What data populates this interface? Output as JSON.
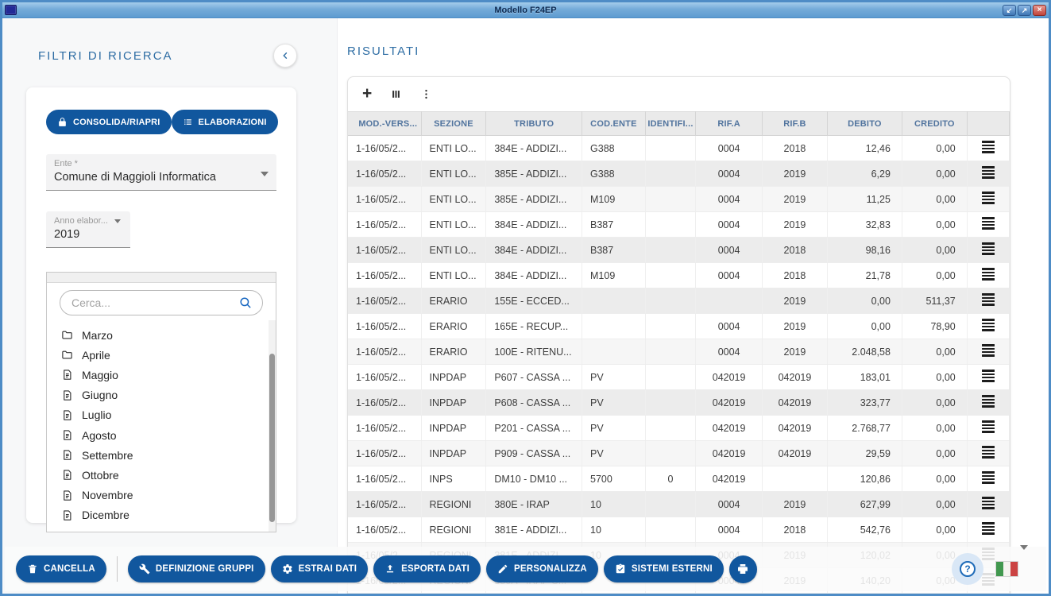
{
  "window": {
    "title": "Modello F24EP",
    "controls": {
      "restore": "↙",
      "maximize": "↗",
      "close": "×"
    }
  },
  "colors": {
    "accent_blue": "#11579e",
    "heading_blue": "#2e6da4",
    "table_header_text": "#51749e",
    "flag_green": "#42984f",
    "flag_red": "#cb4343"
  },
  "sidebar": {
    "title": "FILTRI DI RICERCA",
    "actions": [
      {
        "label": "CONSOLIDA/RIAPRI",
        "icon": "lock-icon"
      },
      {
        "label": "ELABORAZIONI",
        "icon": "list-icon"
      }
    ],
    "ente": {
      "label": "Ente *",
      "value": "Comune di Maggioli Informatica"
    },
    "anno": {
      "label": "Anno elabor...",
      "value": "2019"
    },
    "search": {
      "placeholder": "Cerca..."
    },
    "tree": [
      {
        "label": "Marzo",
        "icon": "folder"
      },
      {
        "label": "Aprile",
        "icon": "folder"
      },
      {
        "label": "Maggio",
        "icon": "file"
      },
      {
        "label": "Giugno",
        "icon": "file"
      },
      {
        "label": "Luglio",
        "icon": "file"
      },
      {
        "label": "Agosto",
        "icon": "file"
      },
      {
        "label": "Settembre",
        "icon": "file"
      },
      {
        "label": "Ottobre",
        "icon": "file"
      },
      {
        "label": "Novembre",
        "icon": "file"
      },
      {
        "label": "Dicembre",
        "icon": "file"
      }
    ]
  },
  "main": {
    "title": "RISULTATI",
    "toolbar": {
      "add_icon": "+"
    },
    "table": {
      "columns": [
        "MOD.-VERS...",
        "SEZIONE",
        "TRIBUTO",
        "COD.ENTE",
        "IDENTIFI...",
        "RIF.A",
        "RIF.B",
        "DEBITO",
        "CREDITO"
      ],
      "rows": [
        {
          "mod": "1-16/05/2...",
          "sezione": "ENTI LO...",
          "tributo": "384E - ADDIZI...",
          "cod_ente": "G388",
          "identifi": "",
          "rif_a": "0004",
          "rif_b": "2018",
          "debito": "12,46",
          "credito": "0,00",
          "shade": 0
        },
        {
          "mod": "1-16/05/2...",
          "sezione": "ENTI LO...",
          "tributo": "385E - ADDIZI...",
          "cod_ente": "G388",
          "identifi": "",
          "rif_a": "0004",
          "rif_b": "2019",
          "debito": "6,29",
          "credito": "0,00",
          "shade": 2
        },
        {
          "mod": "1-16/05/2...",
          "sezione": "ENTI LO...",
          "tributo": "385E - ADDIZI...",
          "cod_ente": "M109",
          "identifi": "",
          "rif_a": "0004",
          "rif_b": "2019",
          "debito": "11,25",
          "credito": "0,00",
          "shade": 1
        },
        {
          "mod": "1-16/05/2...",
          "sezione": "ENTI LO...",
          "tributo": "384E - ADDIZI...",
          "cod_ente": "B387",
          "identifi": "",
          "rif_a": "0004",
          "rif_b": "2019",
          "debito": "32,83",
          "credito": "0,00",
          "shade": 0
        },
        {
          "mod": "1-16/05/2...",
          "sezione": "ENTI LO...",
          "tributo": "384E - ADDIZI...",
          "cod_ente": "B387",
          "identifi": "",
          "rif_a": "0004",
          "rif_b": "2018",
          "debito": "98,16",
          "credito": "0,00",
          "shade": 2
        },
        {
          "mod": "1-16/05/2...",
          "sezione": "ENTI LO...",
          "tributo": "384E - ADDIZI...",
          "cod_ente": "M109",
          "identifi": "",
          "rif_a": "0004",
          "rif_b": "2018",
          "debito": "21,78",
          "credito": "0,00",
          "shade": 0
        },
        {
          "mod": "1-16/05/2...",
          "sezione": "ERARIO",
          "tributo": "155E - ECCED...",
          "cod_ente": "",
          "identifi": "",
          "rif_a": "",
          "rif_b": "2019",
          "debito": "0,00",
          "credito": "511,37",
          "shade": 2
        },
        {
          "mod": "1-16/05/2...",
          "sezione": "ERARIO",
          "tributo": "165E - RECUP...",
          "cod_ente": "",
          "identifi": "",
          "rif_a": "0004",
          "rif_b": "2019",
          "debito": "0,00",
          "credito": "78,90",
          "shade": 0
        },
        {
          "mod": "1-16/05/2...",
          "sezione": "ERARIO",
          "tributo": "100E - RITENU...",
          "cod_ente": "",
          "identifi": "",
          "rif_a": "0004",
          "rif_b": "2019",
          "debito": "2.048,58",
          "credito": "0,00",
          "shade": 1
        },
        {
          "mod": "1-16/05/2...",
          "sezione": "INPDAP",
          "tributo": "P607 - CASSA ...",
          "cod_ente": "PV",
          "identifi": "",
          "rif_a": "042019",
          "rif_b": "042019",
          "debito": "183,01",
          "credito": "0,00",
          "shade": 0
        },
        {
          "mod": "1-16/05/2...",
          "sezione": "INPDAP",
          "tributo": "P608 - CASSA ...",
          "cod_ente": "PV",
          "identifi": "",
          "rif_a": "042019",
          "rif_b": "042019",
          "debito": "323,77",
          "credito": "0,00",
          "shade": 2
        },
        {
          "mod": "1-16/05/2...",
          "sezione": "INPDAP",
          "tributo": "P201 - CASSA ...",
          "cod_ente": "PV",
          "identifi": "",
          "rif_a": "042019",
          "rif_b": "042019",
          "debito": "2.768,77",
          "credito": "0,00",
          "shade": 0
        },
        {
          "mod": "1-16/05/2...",
          "sezione": "INPDAP",
          "tributo": "P909 - CASSA ...",
          "cod_ente": "PV",
          "identifi": "",
          "rif_a": "042019",
          "rif_b": "042019",
          "debito": "29,59",
          "credito": "0,00",
          "shade": 1
        },
        {
          "mod": "1-16/05/2...",
          "sezione": "INPS",
          "tributo": "DM10 - DM10 ...",
          "cod_ente": "5700",
          "identifi": "0",
          "rif_a": "042019",
          "rif_b": "",
          "debito": "120,86",
          "credito": "0,00",
          "shade": 0
        },
        {
          "mod": "1-16/05/2...",
          "sezione": "REGIONI",
          "tributo": "380E - IRAP",
          "cod_ente": "10",
          "identifi": "",
          "rif_a": "0004",
          "rif_b": "2019",
          "debito": "627,99",
          "credito": "0,00",
          "shade": 2
        },
        {
          "mod": "1-16/05/2...",
          "sezione": "REGIONI",
          "tributo": "381E - ADDIZI...",
          "cod_ente": "10",
          "identifi": "",
          "rif_a": "0004",
          "rif_b": "2018",
          "debito": "542,76",
          "credito": "0,00",
          "shade": 0
        },
        {
          "mod": "1-16/05/2...",
          "sezione": "REGIONI",
          "tributo": "381E - ADDIZI...",
          "cod_ente": "10",
          "identifi": "",
          "rif_a": "0004",
          "rif_b": "2019",
          "debito": "120,02",
          "credito": "0,00",
          "shade": 1
        },
        {
          "mod": "1-16/05/2...",
          "sezione": "REGIONI",
          "tributo": "380A - IRAP S...",
          "cod_ente": "",
          "identifi": "",
          "rif_a": "0004",
          "rif_b": "2019",
          "debito": "140,20",
          "credito": "0,00",
          "shade": 0
        }
      ]
    }
  },
  "footer": {
    "buttons": [
      {
        "label": "CANCELLA",
        "icon": "trash-icon",
        "divider_after": true
      },
      {
        "label": "DEFINIZIONE GRUPPI",
        "icon": "wrench-icon"
      },
      {
        "label": "ESTRAI DATI",
        "icon": "gear-icon"
      },
      {
        "label": "ESPORTA DATI",
        "icon": "upload-icon"
      },
      {
        "label": "PERSONALIZZA",
        "icon": "pencil-icon"
      },
      {
        "label": "SISTEMI ESTERNI",
        "icon": "checklist-icon"
      }
    ],
    "help_label": "?"
  }
}
